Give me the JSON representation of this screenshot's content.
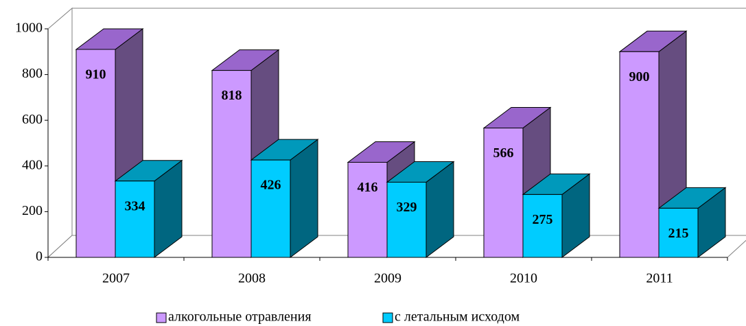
{
  "chart_data": {
    "type": "bar3d",
    "categories": [
      "2007",
      "2008",
      "2009",
      "2010",
      "2011"
    ],
    "series": [
      {
        "name": "алкогольные отравления",
        "color": "#cc99ff",
        "top_color": "#9966cc",
        "side_color": "#664d80",
        "values": [
          910,
          818,
          416,
          566,
          900
        ]
      },
      {
        "name": "с летальным исходом",
        "color": "#00ccff",
        "top_color": "#0099bb",
        "side_color": "#006680",
        "values": [
          334,
          426,
          329,
          275,
          215
        ]
      }
    ],
    "ylim": [
      0,
      1000
    ],
    "yticks": [
      0,
      200,
      400,
      600,
      800,
      1000
    ],
    "grid": false,
    "legend": "bottom"
  }
}
